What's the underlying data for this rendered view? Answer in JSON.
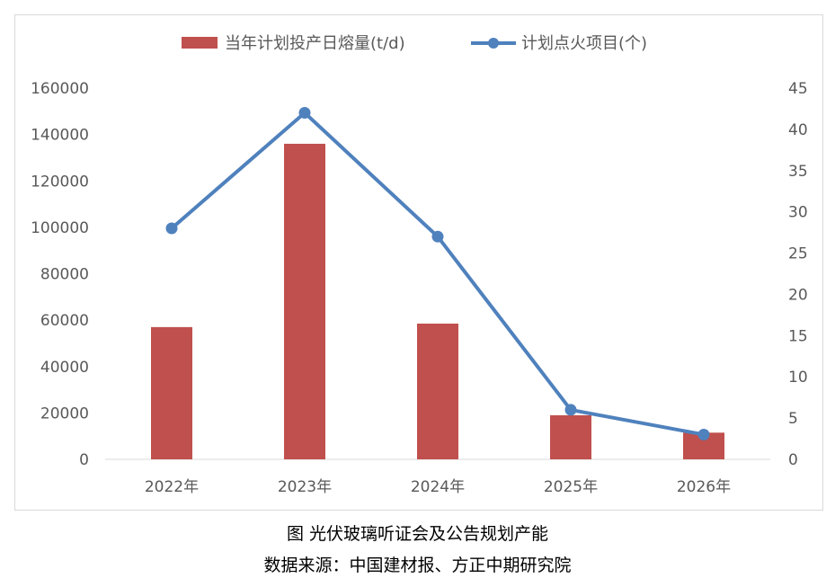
{
  "chart_data": {
    "type": "bar",
    "categories": [
      "2022年",
      "2023年",
      "2024年",
      "2025年",
      "2026年"
    ],
    "y_left": {
      "ylim": [
        0,
        160000
      ],
      "ticks": [
        "0",
        "20000",
        "40000",
        "60000",
        "80000",
        "100000",
        "120000",
        "140000",
        "160000"
      ]
    },
    "y_right": {
      "ylim": [
        0,
        45
      ],
      "ticks": [
        "0",
        "5",
        "10",
        "15",
        "20",
        "25",
        "30",
        "35",
        "40",
        "45"
      ]
    },
    "series": [
      {
        "name": "当年计划投产日熔量(t/d)",
        "type": "bar",
        "axis": "left",
        "color": "#c0504d",
        "values": [
          57000,
          136000,
          58500,
          19000,
          11500
        ]
      },
      {
        "name": "计划点火项目(个)",
        "type": "line",
        "axis": "right",
        "color": "#4f81bd",
        "values": [
          28,
          42,
          27,
          6,
          3
        ]
      }
    ],
    "legend_position": "top",
    "grid": false
  },
  "caption": {
    "title": "图  光伏玻璃听证会及公告规划产能",
    "source": "数据来源：中国建材报、方正中期研究院"
  }
}
